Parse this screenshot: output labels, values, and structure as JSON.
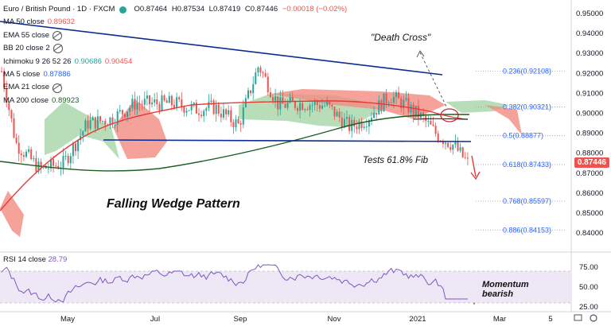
{
  "header": {
    "symbol_title": "Euro / British Pound · 1D · FXCM",
    "open": "O0.87464",
    "high": "H0.87534",
    "low": "L0.87419",
    "close": "C0.87446",
    "change": "−0.00018 (−0.02%)"
  },
  "indicators": [
    {
      "label": "MA 50 close",
      "value": "0.89632",
      "color": "#ef5350"
    },
    {
      "label": "EMA 55 close",
      "hidden": true
    },
    {
      "label": "BB 20 close 2",
      "hidden": true
    },
    {
      "label": "Ichimoku 9 26 52 26",
      "value": "0.90686",
      "value2": "0.90454"
    },
    {
      "label": "MA 5 close",
      "value": "0.87886",
      "color": "#2962ff"
    },
    {
      "label": "EMA 21 close",
      "hidden": true
    },
    {
      "label": "MA 200 close",
      "value": "0.89923",
      "color": "#1b5e20"
    }
  ],
  "price_axis": [
    "0.95000",
    "0.94000",
    "0.93000",
    "0.92000",
    "0.91000",
    "0.90000",
    "0.89000",
    "0.88000",
    "0.87000",
    "0.86000",
    "0.85000",
    "0.84000"
  ],
  "last_price": "0.87446",
  "fib_levels": [
    {
      "label": "0.236(0.92108)",
      "price": 0.92108
    },
    {
      "label": "0.382(0.90321)",
      "price": 0.90321
    },
    {
      "label": "0.5(0.88877)",
      "price": 0.88877
    },
    {
      "label": "0.618(0.87433)",
      "price": 0.87433
    },
    {
      "label": "0.768(0.85597)",
      "price": 0.85597
    },
    {
      "label": "0.886(0.84153)",
      "price": 0.84153
    }
  ],
  "annotations": {
    "death_cross": "\"Death Cross\"",
    "tests_fib": "Tests 61.8% Fib",
    "pattern": "Falling Wedge Pattern",
    "momentum_line1": "Momentum",
    "momentum_line2": "bearish"
  },
  "rsi": {
    "label": "RSI 14 close",
    "value": "28.79",
    "axis": [
      "75.00",
      "50.00",
      "25.00"
    ]
  },
  "time_axis": [
    "May",
    "Jul",
    "Sep",
    "Nov",
    "2021",
    "Mar",
    "5"
  ],
  "colors": {
    "up": "#26a69a",
    "down": "#ef5350",
    "trend": "#0d2c8f",
    "rsi": "#7e57c2"
  }
}
